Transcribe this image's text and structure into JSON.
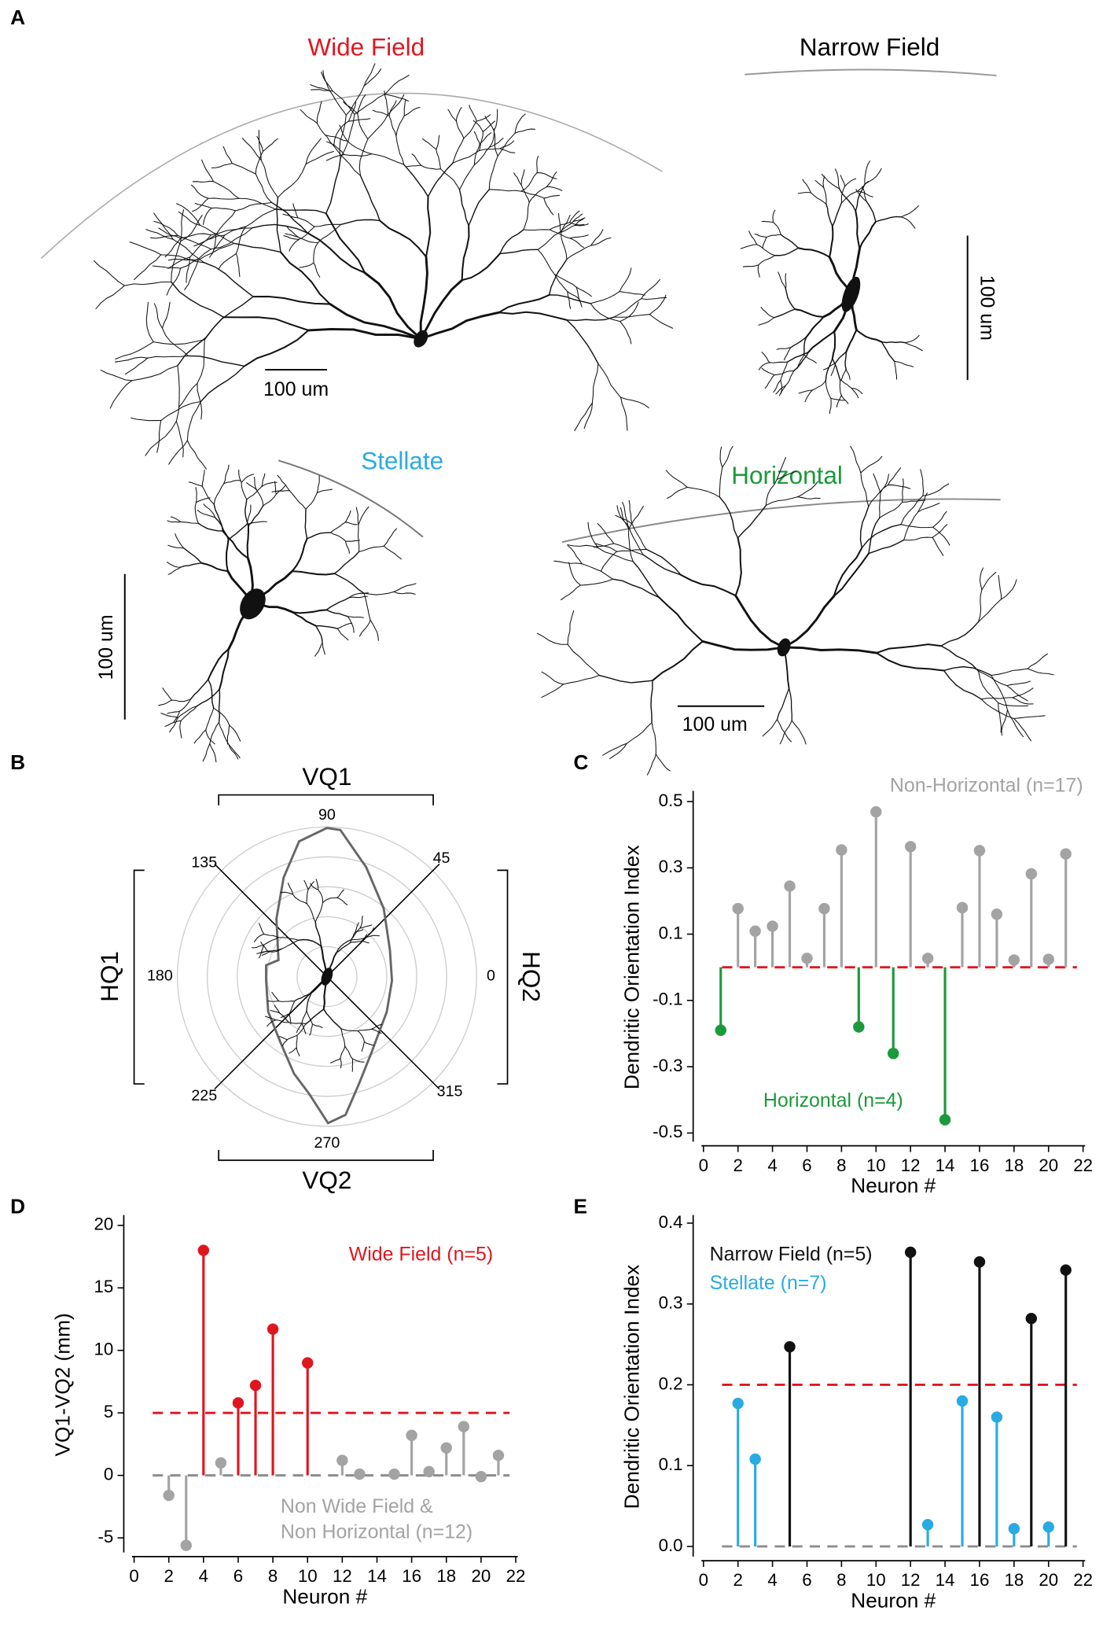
{
  "panel_labels": [
    "A",
    "B",
    "C",
    "D",
    "E"
  ],
  "panel_a": {
    "wide_field": {
      "title": "Wide Field",
      "scale_bar": "100 um"
    },
    "narrow_field": {
      "title": "Narrow Field",
      "scale_bar": "100 um"
    },
    "stellate": {
      "title": "Stellate",
      "scale_bar": "100 um"
    },
    "horizontal": {
      "title": "Horizontal",
      "scale_bar": "100 um"
    }
  },
  "panel_b": {
    "quadrants": {
      "top": "VQ1",
      "bottom": "VQ2",
      "left": "HQ1",
      "right": "HQ2"
    },
    "angles": [
      90,
      45,
      0,
      315,
      270,
      225,
      180,
      135
    ]
  },
  "chart_data": [
    {
      "type": "stem",
      "ylabel": "Dendritic Orientation Index",
      "xlabel": "Neuron #",
      "x": [
        1,
        2,
        3,
        4,
        5,
        6,
        7,
        8,
        9,
        10,
        11,
        12,
        13,
        14,
        15,
        16,
        17,
        18,
        19,
        20,
        21
      ],
      "series": [
        {
          "name": "Non-Horizontal (n=17)",
          "color": "#a3a3a3",
          "values": [
            null,
            0.177,
            0.109,
            0.124,
            0.245,
            0.027,
            0.177,
            0.354,
            null,
            0.469,
            null,
            0.364,
            0.027,
            null,
            0.18,
            0.352,
            0.16,
            0.022,
            0.282,
            0.024,
            0.342
          ]
        },
        {
          "name": "Horizontal (n=4)",
          "color": "#1a9a3a",
          "values": [
            -0.19,
            null,
            null,
            null,
            null,
            null,
            null,
            null,
            -0.18,
            null,
            -0.26,
            null,
            null,
            -0.46,
            null,
            null,
            null,
            null,
            null,
            null,
            null
          ]
        }
      ],
      "reference_lines": [
        {
          "value": 0,
          "color": "#e0161f"
        }
      ],
      "xlim": [
        0,
        22
      ],
      "xticks": [
        0,
        2,
        4,
        6,
        8,
        10,
        12,
        14,
        16,
        18,
        20,
        22
      ],
      "ylim": [
        -0.52,
        0.52
      ],
      "yticks": [
        -0.5,
        -0.3,
        -0.1,
        0.1,
        0.3,
        0.5
      ]
    },
    {
      "type": "stem",
      "ylabel": "VQ1-VQ2 (mm)",
      "xlabel": "Neuron #",
      "x": [
        1,
        2,
        3,
        4,
        5,
        6,
        7,
        8,
        9,
        10,
        11,
        12,
        13,
        14,
        15,
        16,
        17,
        18,
        19,
        20,
        21
      ],
      "series": [
        {
          "name": "Wide Field (n=5)",
          "color": "#e0161f",
          "values": [
            null,
            null,
            null,
            18,
            null,
            5.8,
            7.2,
            11.7,
            null,
            9.0,
            null,
            null,
            null,
            null,
            null,
            null,
            null,
            null,
            null,
            null,
            null
          ]
        },
        {
          "name": "Non Wide Field &\nNon Horizontal  (n=12)",
          "color": "#a3a3a3",
          "values": [
            null,
            -1.6,
            -5.6,
            null,
            1.0,
            null,
            null,
            null,
            null,
            null,
            null,
            1.2,
            0.1,
            null,
            0.1,
            3.2,
            0.3,
            2.2,
            3.9,
            -0.1,
            1.6
          ]
        }
      ],
      "reference_lines": [
        {
          "value": 5,
          "color": "#e0161f"
        },
        {
          "value": 0,
          "color": "#8c8c8c"
        }
      ],
      "xlim": [
        0,
        22
      ],
      "xticks": [
        0,
        2,
        4,
        6,
        8,
        10,
        12,
        14,
        16,
        18,
        20,
        22
      ],
      "ylim": [
        -6,
        20.5
      ],
      "yticks": [
        -5,
        0,
        5,
        10,
        15,
        20
      ]
    },
    {
      "type": "stem",
      "ylabel": "Dendritic Orientation Index",
      "xlabel": "Neuron #",
      "x": [
        1,
        2,
        3,
        4,
        5,
        6,
        7,
        8,
        9,
        10,
        11,
        12,
        13,
        14,
        15,
        16,
        17,
        18,
        19,
        20,
        21
      ],
      "series": [
        {
          "name": "Narrow Field (n=5)",
          "color": "#111111",
          "values": [
            null,
            null,
            null,
            null,
            0.247,
            null,
            null,
            null,
            null,
            null,
            null,
            0.364,
            null,
            null,
            null,
            0.352,
            null,
            null,
            0.282,
            null,
            0.342
          ]
        },
        {
          "name": "Stellate (n=7)",
          "color": "#29abe2",
          "values": [
            null,
            0.177,
            0.108,
            null,
            null,
            null,
            null,
            null,
            null,
            null,
            null,
            null,
            0.027,
            null,
            0.18,
            null,
            0.16,
            0.022,
            null,
            0.024,
            null
          ]
        }
      ],
      "reference_lines": [
        {
          "value": 0.2,
          "color": "#e0161f"
        },
        {
          "value": 0,
          "color": "#8c8c8c"
        }
      ],
      "xlim": [
        0,
        22
      ],
      "xticks": [
        0,
        2,
        4,
        6,
        8,
        10,
        12,
        14,
        16,
        18,
        20,
        22
      ],
      "ylim": [
        -0.01,
        0.405
      ],
      "yticks": [
        {
          "value": 0,
          "label": "0.0"
        },
        0.1,
        0.2,
        0.3,
        0.4
      ]
    }
  ]
}
